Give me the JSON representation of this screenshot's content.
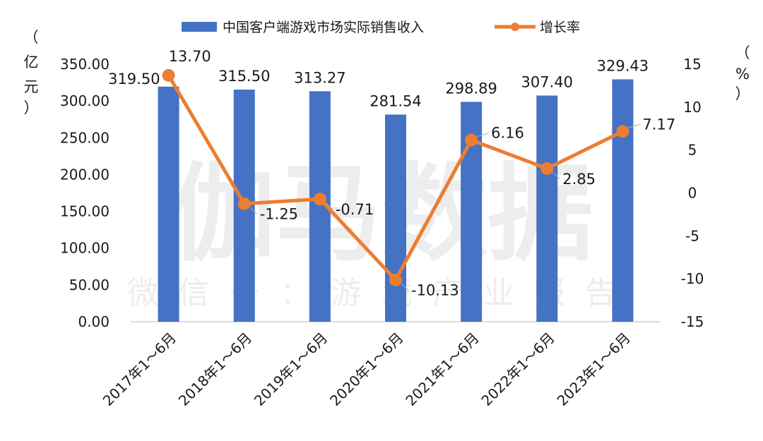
{
  "watermark": {
    "main": "伽马数据",
    "sub": "微信号：游戏产业报告"
  },
  "units": {
    "left": [
      "（",
      "亿",
      "元",
      "）"
    ],
    "right": [
      "（",
      "%",
      "）"
    ]
  },
  "colors": {
    "bar": "#4472C4",
    "line": "#ED7D31"
  },
  "chart_data": {
    "type": "bar",
    "categories": [
      "2017年1～6月",
      "2018年1～6月",
      "2019年1～6月",
      "2020年1～6月",
      "2021年1～6月",
      "2022年1～6月",
      "2023年1～6月"
    ],
    "series": [
      {
        "name": "中国客户端游戏市场实际销售收入",
        "type": "bar",
        "axis": "left",
        "values": [
          319.5,
          315.5,
          313.27,
          281.54,
          298.89,
          307.4,
          329.43
        ],
        "labels": [
          "319.50",
          "315.50",
          "313.27",
          "281.54",
          "298.89",
          "307.40",
          "329.43"
        ]
      },
      {
        "name": "增长率",
        "type": "line",
        "axis": "right",
        "values": [
          13.7,
          -1.25,
          -0.71,
          -10.13,
          6.16,
          2.85,
          7.17
        ],
        "labels": [
          "13.70",
          "-1.25",
          "-0.71",
          "-10.13",
          "6.16",
          "2.85",
          "7.17"
        ]
      }
    ],
    "left_axis": {
      "min": 0,
      "max": 350,
      "ticks": [
        "0.00",
        "50.00",
        "100.00",
        "150.00",
        "200.00",
        "250.00",
        "300.00",
        "350.00"
      ]
    },
    "right_axis": {
      "min": -15,
      "max": 15,
      "ticks": [
        "-15",
        "-10",
        "-5",
        "0",
        "5",
        "10",
        "15"
      ]
    },
    "legend_position": "top",
    "grid": false
  }
}
